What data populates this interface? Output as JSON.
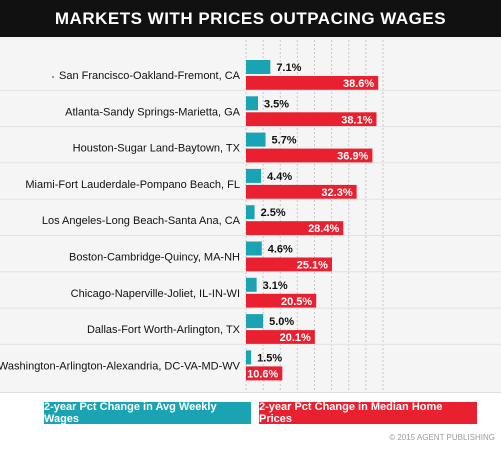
{
  "chart_data": {
    "type": "bar",
    "title": "MARKETS WITH PRICES OUTPACING WAGES",
    "categories": [
      "San Francisco-Oakland-Fremont, CA",
      "Atlanta-Sandy Springs-Marietta, GA",
      "Houston-Sugar Land-Baytown, TX",
      "Miami-Fort Lauderdale-Pompano Beach, FL",
      "Los Angeles-Long Beach-Santa Ana, CA",
      "Boston-Cambridge-Quincy, MA-NH",
      "Chicago-Naperville-Joliet, IL-IN-WI",
      "Dallas-Fort Worth-Arlington, TX",
      "Washington-Arlington-Alexandria, DC-VA-MD-WV"
    ],
    "series": [
      {
        "name": "2-year Pct Change in Avg Weekly Wages",
        "values": [
          7.1,
          3.5,
          5.7,
          4.4,
          2.5,
          4.6,
          3.1,
          5.0,
          1.5
        ],
        "labels": [
          "7.1%",
          "3.5%",
          "5.7%",
          "4.4%",
          "2.5%",
          "4.6%",
          "3.1%",
          "5.0%",
          "1.5%"
        ],
        "color": "#1aa3b3"
      },
      {
        "name": "2-year Pct Change in Median Home Prices",
        "values": [
          38.6,
          38.1,
          36.9,
          32.3,
          28.4,
          25.1,
          20.5,
          20.1,
          10.6
        ],
        "labels": [
          "38.6%",
          "38.1%",
          "36.9%",
          "32.3%",
          "28.4%",
          "25.1%",
          "20.5%",
          "20.1%",
          "10.6%"
        ],
        "color": "#e8202f"
      }
    ],
    "xlim": [
      0,
      40
    ],
    "grid": true,
    "legend": "bottom"
  },
  "copyright": "© 2015 AGENT PUBLISHING"
}
